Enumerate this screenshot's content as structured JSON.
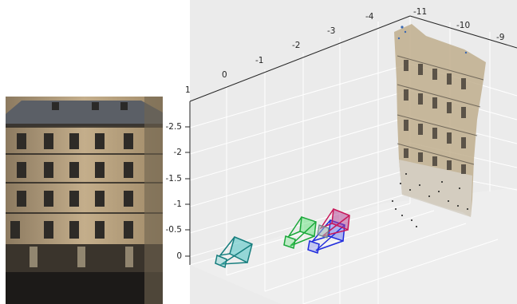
{
  "photo": {
    "subject": "parisian-apartment-facade"
  },
  "chart_data": {
    "type": "scatter3d",
    "title": "",
    "xlabel": "",
    "ylabel": "",
    "zlabel": "",
    "x_ticks": [
      "1",
      "0",
      "-1",
      "-2",
      "-3",
      "-4"
    ],
    "y_ticks": [
      "-11",
      "-10",
      "-9"
    ],
    "z_ticks": [
      "-2.5",
      "-2",
      "-1.5",
      "-1",
      "-0.5",
      "0"
    ],
    "grid": true,
    "background": "#ebebeb",
    "series": [
      {
        "name": "",
        "kind": "camera-frustum",
        "color": "#1a9e9e"
      },
      {
        "name": "",
        "kind": "camera-frustum",
        "color": "#22c940"
      },
      {
        "name": "",
        "kind": "camera-frustum",
        "color": "#1f2bdd"
      },
      {
        "name": "",
        "kind": "camera-frustum",
        "color": "#c8185a"
      },
      {
        "name": "",
        "kind": "point-cloud",
        "description": "facade reconstruction"
      }
    ]
  }
}
